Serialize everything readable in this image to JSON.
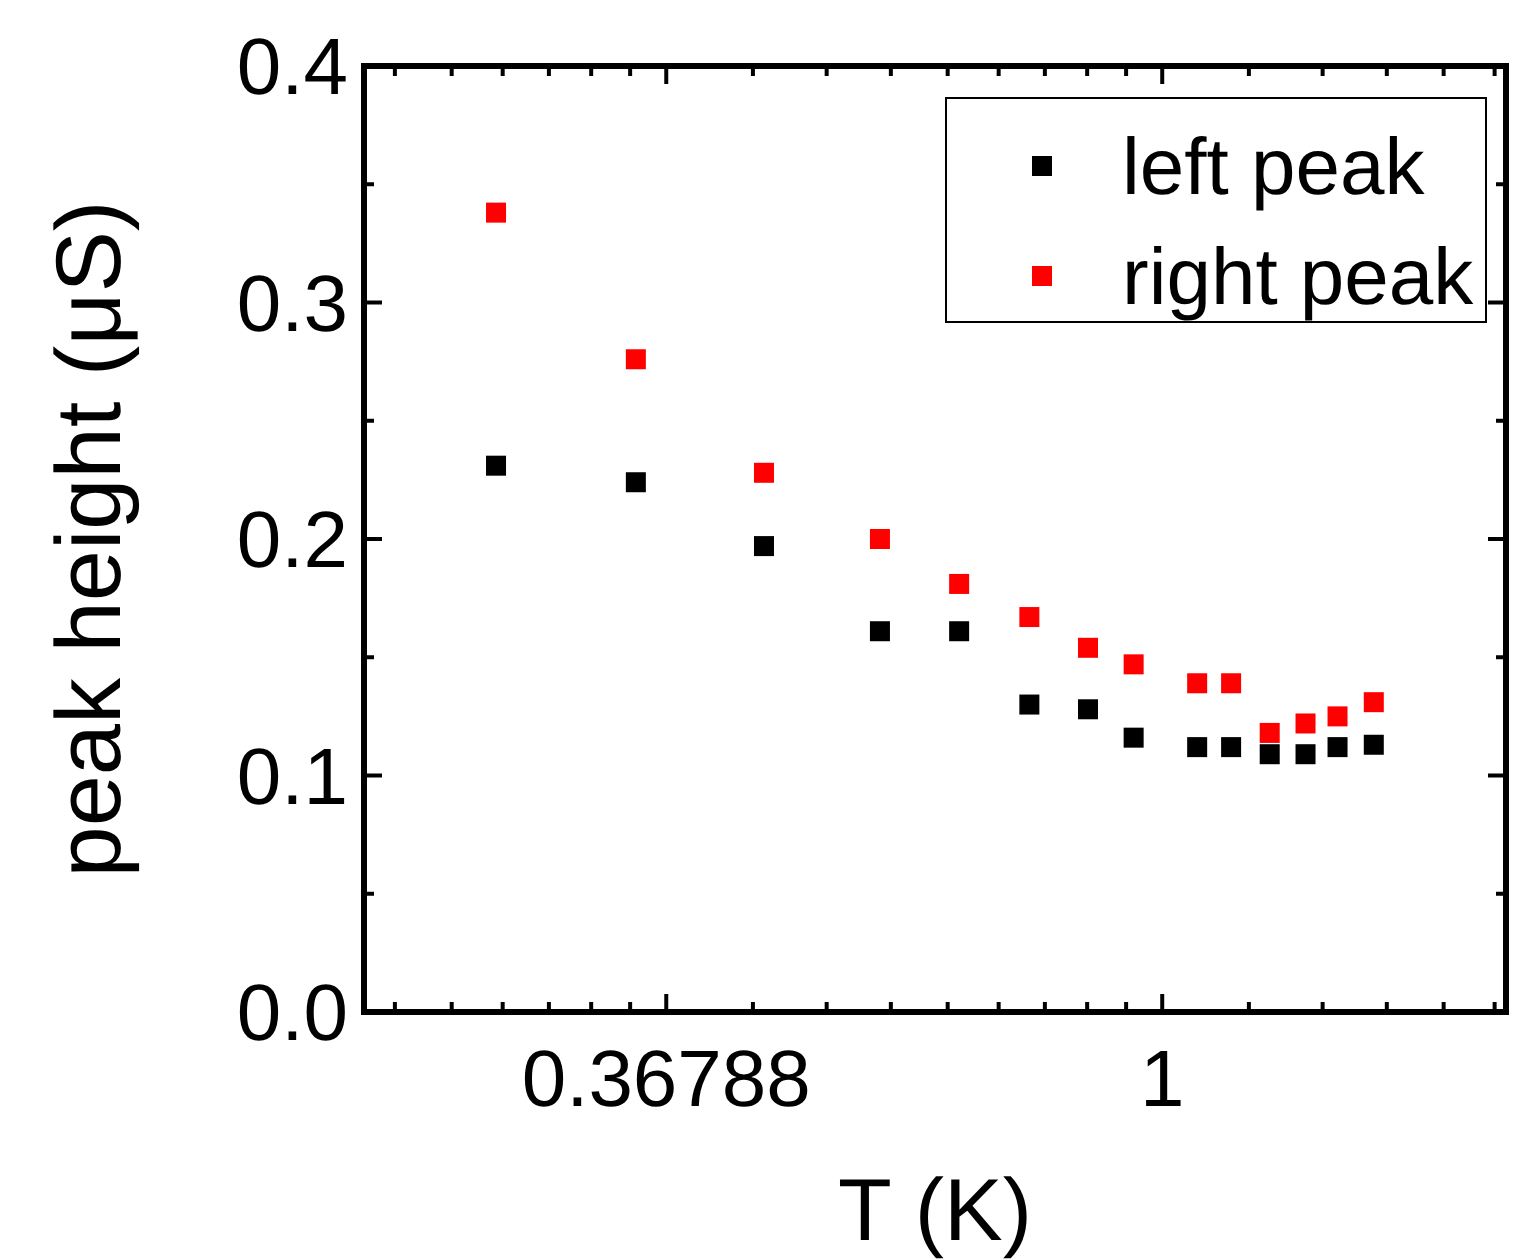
{
  "chart_data": {
    "type": "scatter",
    "xlabel": "T (K)",
    "ylabel": "peak height (μS)",
    "log": "x",
    "xlim": [
      0.2,
      2
    ],
    "ylim": [
      0,
      0.4
    ],
    "xticks": [
      {
        "value": 0.21285,
        "label": null
      },
      {
        "value": 0.23868,
        "label": null
      },
      {
        "value": 0.26452,
        "label": null
      },
      {
        "value": 0.29036,
        "label": null
      },
      {
        "value": 0.3162,
        "label": null
      },
      {
        "value": 0.34204,
        "label": null
      },
      0.36788,
      {
        "value": 0.43812,
        "label": null
      },
      {
        "value": 0.50835,
        "label": null
      },
      {
        "value": 0.57859,
        "label": null
      },
      {
        "value": 0.64883,
        "label": null
      },
      {
        "value": 0.71906,
        "label": null
      },
      {
        "value": 0.7893,
        "label": null
      },
      {
        "value": 0.85953,
        "label": null
      },
      {
        "value": 0.92977,
        "label": null
      },
      1,
      {
        "value": 1.19092,
        "label": null
      },
      {
        "value": 1.38184,
        "label": null
      },
      {
        "value": 1.57276,
        "label": null
      },
      {
        "value": 1.76368,
        "label": null
      },
      {
        "value": 1.9546,
        "label": null
      }
    ],
    "yticks": [
      {
        "value": 0,
        "label": "0.0"
      },
      {
        "value": 0.05,
        "label": null
      },
      0.1,
      {
        "value": 0.15,
        "label": null
      },
      0.2,
      {
        "value": 0.25,
        "label": null
      },
      0.3,
      {
        "value": 0.35,
        "label": null
      },
      0.4
    ],
    "x": [
      0.261,
      0.346,
      0.448,
      0.566,
      0.664,
      0.765,
      0.861,
      0.944,
      1.073,
      1.149,
      1.242,
      1.335,
      1.424,
      1.532
    ],
    "series": [
      {
        "name": "left peak",
        "color": "#000000",
        "values": [
          0.231,
          0.224,
          0.197,
          0.161,
          0.161,
          0.13,
          0.128,
          0.116,
          0.112,
          0.112,
          0.109,
          0.109,
          0.112,
          0.113
        ]
      },
      {
        "name": "right peak",
        "color": "#ff0000",
        "values": [
          0.338,
          0.276,
          0.228,
          0.2,
          0.181,
          0.167,
          0.154,
          0.147,
          0.139,
          0.139,
          0.118,
          0.122,
          0.125,
          0.131
        ]
      }
    ],
    "marker": "square",
    "legend": "top right",
    "grid": false
  }
}
